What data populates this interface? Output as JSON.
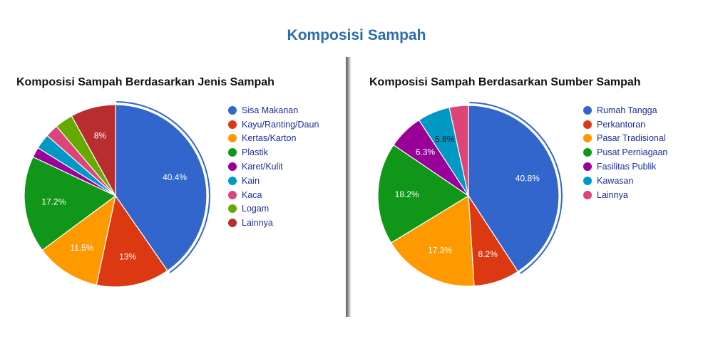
{
  "page_title": "Komposisi Sampah",
  "chart_data": [
    {
      "type": "pie",
      "title": "Komposisi Sampah Berdasarkan Jenis Sampah",
      "legend_position": "right",
      "slices": [
        {
          "label": "Sisa Makanan",
          "value": 40.4,
          "value_label": "40.4%",
          "color": "#3366cc",
          "label_color": "#ffffff"
        },
        {
          "label": "Kayu/Ranting/Daun",
          "value": 13,
          "value_label": "13%",
          "color": "#dc3912",
          "label_color": "#ffffff"
        },
        {
          "label": "Kertas/Karton",
          "value": 11.5,
          "value_label": "11.5%",
          "color": "#ff9900",
          "label_color": "#ffffff"
        },
        {
          "label": "Plastik",
          "value": 17.2,
          "value_label": "17.2%",
          "color": "#109618",
          "label_color": "#ffffff"
        },
        {
          "label": "Karet/Kulit",
          "value": 1.8,
          "value_label": "",
          "color": "#990099",
          "label_color": "#ffffff"
        },
        {
          "label": "Kain",
          "value": 2.7,
          "value_label": "",
          "color": "#0099c6",
          "label_color": "#ffffff"
        },
        {
          "label": "Kaca",
          "value": 2.3,
          "value_label": "",
          "color": "#dd4477",
          "label_color": "#ffffff"
        },
        {
          "label": "Logam",
          "value": 3.2,
          "value_label": "",
          "color": "#66aa00",
          "label_color": "#ffffff"
        },
        {
          "label": "Lainnya",
          "value": 8,
          "value_label": "8%",
          "color": "#b82e2e",
          "label_color": "#ffffff"
        }
      ]
    },
    {
      "type": "pie",
      "title": "Komposisi Sampah Berdasarkan Sumber Sampah",
      "legend_position": "right",
      "slices": [
        {
          "label": "Rumah Tangga",
          "value": 40.8,
          "value_label": "40.8%",
          "color": "#3366cc",
          "label_color": "#ffffff"
        },
        {
          "label": "Perkantoran",
          "value": 8.2,
          "value_label": "8.2%",
          "color": "#dc3912",
          "label_color": "#ffffff"
        },
        {
          "label": "Pasar Tradisional",
          "value": 17.3,
          "value_label": "17.3%",
          "color": "#ff9900",
          "label_color": "#ffffff"
        },
        {
          "label": "Pusat Perniagaan",
          "value": 18.2,
          "value_label": "18.2%",
          "color": "#109618",
          "label_color": "#ffffff"
        },
        {
          "label": "Fasilitas Publik",
          "value": 6.3,
          "value_label": "6.3%",
          "color": "#990099",
          "label_color": "#ffffff"
        },
        {
          "label": "Kawasan",
          "value": 5.8,
          "value_label": "5.8%",
          "color": "#0099c6",
          "label_color": "#111111"
        },
        {
          "label": "Lainnya",
          "value": 3.4,
          "value_label": "",
          "color": "#dd4477",
          "label_color": "#ffffff"
        }
      ]
    }
  ]
}
